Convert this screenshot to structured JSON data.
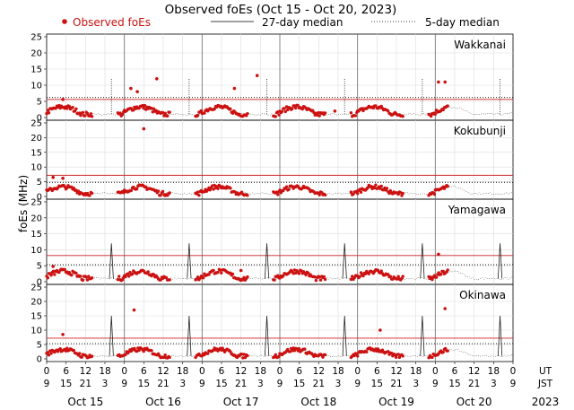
{
  "chart_data": {
    "type": "scatter",
    "title": "Observed foEs (Oct 15 - Oct 20, 2023)",
    "ylabel": "foEs (MHz)",
    "legend": {
      "observed": "Observed foEs",
      "median27": "27-day median",
      "median5": "5-day median",
      "placement": "top"
    },
    "ylim": [
      0,
      25
    ],
    "yticks": [
      "0",
      "5",
      "10",
      "15",
      "20",
      "25"
    ],
    "x_range_hours": [
      0,
      144
    ],
    "ut_label": "UT",
    "jst_label": "JST",
    "ut_ticks": [
      "0",
      "6",
      "12",
      "18",
      "0",
      "6",
      "12",
      "18",
      "0",
      "6",
      "12",
      "18",
      "0",
      "6",
      "12",
      "18",
      "0",
      "6",
      "12",
      "18",
      "0",
      "6",
      "12",
      "18",
      "0"
    ],
    "jst_ticks": [
      "9",
      "15",
      "21",
      "3",
      "9",
      "15",
      "21",
      "3",
      "9",
      "15",
      "21",
      "3",
      "9",
      "15",
      "21",
      "3",
      "9",
      "15",
      "21",
      "3",
      "9",
      "15",
      "21",
      "3",
      "9"
    ],
    "days": [
      "Oct 15",
      "Oct 16",
      "Oct 17",
      "Oct 18",
      "Oct 19",
      "Oct 20"
    ],
    "year": "2023",
    "colors": {
      "observed": "#cc1111",
      "median27": "#cc2222",
      "median5": "#000000"
    },
    "stations": [
      {
        "name": "Wakkanai",
        "median27": 5.6,
        "median5": 6.2,
        "outliers": [
          {
            "x": 5,
            "y": 5.6
          },
          {
            "x": 26,
            "y": 9
          },
          {
            "x": 28,
            "y": 8
          },
          {
            "x": 34,
            "y": 12
          },
          {
            "x": 58,
            "y": 9
          },
          {
            "x": 65,
            "y": 13
          },
          {
            "x": 89,
            "y": 2
          },
          {
            "x": 121,
            "y": 11
          },
          {
            "x": 123,
            "y": 11
          }
        ]
      },
      {
        "name": "Kokubunji",
        "median27": 7.2,
        "median5": 4.8,
        "outliers": [
          {
            "x": 2,
            "y": 6.5
          },
          {
            "x": 5,
            "y": 6.2
          },
          {
            "x": 30,
            "y": 23
          }
        ]
      },
      {
        "name": "Yamagawa",
        "median27": 8.2,
        "median5": 5.3,
        "outliers": [
          {
            "x": 2,
            "y": 4.8
          },
          {
            "x": 60,
            "y": 3.5
          },
          {
            "x": 121,
            "y": 8.6
          }
        ]
      },
      {
        "name": "Okinawa",
        "median27": 7.2,
        "median5": 5.3,
        "outliers": [
          {
            "x": 5,
            "y": 8.5
          },
          {
            "x": 27,
            "y": 17
          },
          {
            "x": 103,
            "y": 10
          },
          {
            "x": 123,
            "y": 17.5
          }
        ]
      }
    ]
  }
}
